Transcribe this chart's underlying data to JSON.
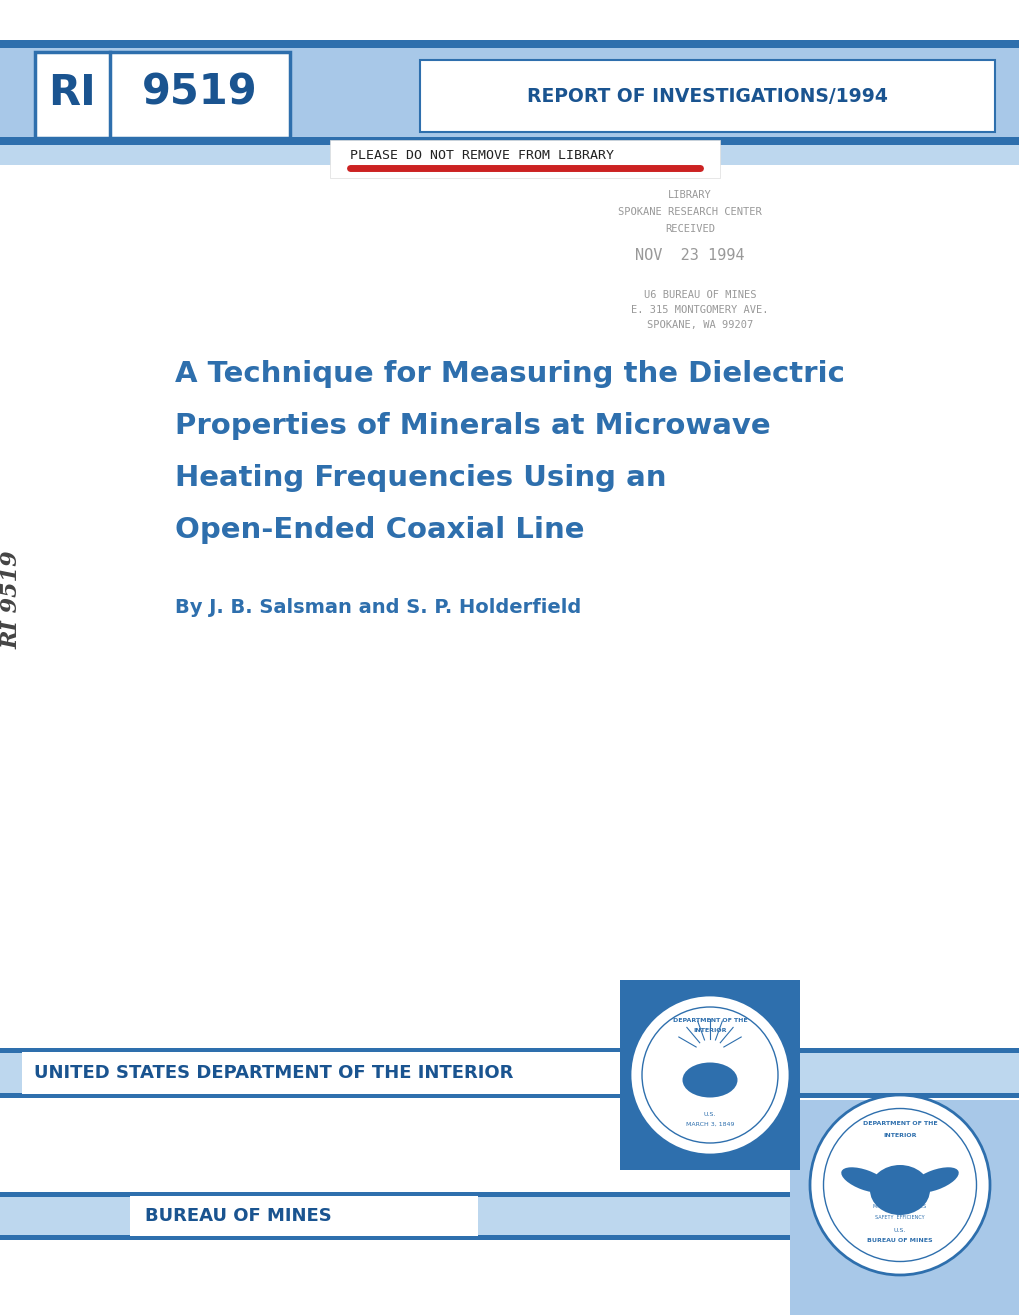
{
  "bg_color": "#ffffff",
  "header_band_color": "#7dadd4",
  "header_band_dark": "#2e6fad",
  "header_band_light": "#bdd7ee",
  "header_band_mid": "#a8c8e8",
  "ri_box_text": "RI",
  "ri_number": "9519",
  "report_title": "REPORT OF INVESTIGATIONS/1994",
  "library_text": "PLEASE DO NOT REMOVE FROM LIBRARY",
  "library_stamp_lines": [
    "LIBRARY",
    "SPOKANE RESEARCH CENTER",
    "RECEIVED"
  ],
  "date_stamp": "NOV  23 1994",
  "address_lines": [
    "U6 BUREAU OF MINES",
    "E. 315 MONTGOMERY AVE.",
    "SPOKANE, WA 99207"
  ],
  "main_title_lines": [
    "A Technique for Measuring the Dielectric",
    "Properties of Minerals at Microwave",
    "Heating Frequencies Using an",
    "Open-Ended Coaxial Line"
  ],
  "author_line": "By J. B. Salsman and S. P. Holderfield",
  "bottom_band1_text": "UNITED STATES DEPARTMENT OF THE INTERIOR",
  "bottom_band2_text": "BUREAU OF MINES",
  "title_color": "#2e6fad",
  "band_text_color": "#1a5490",
  "red_line_color": "#cc2222",
  "stamp_color": "#999999",
  "seal_dark": "#2e6fad",
  "seal_block_color": "#2e6fad"
}
